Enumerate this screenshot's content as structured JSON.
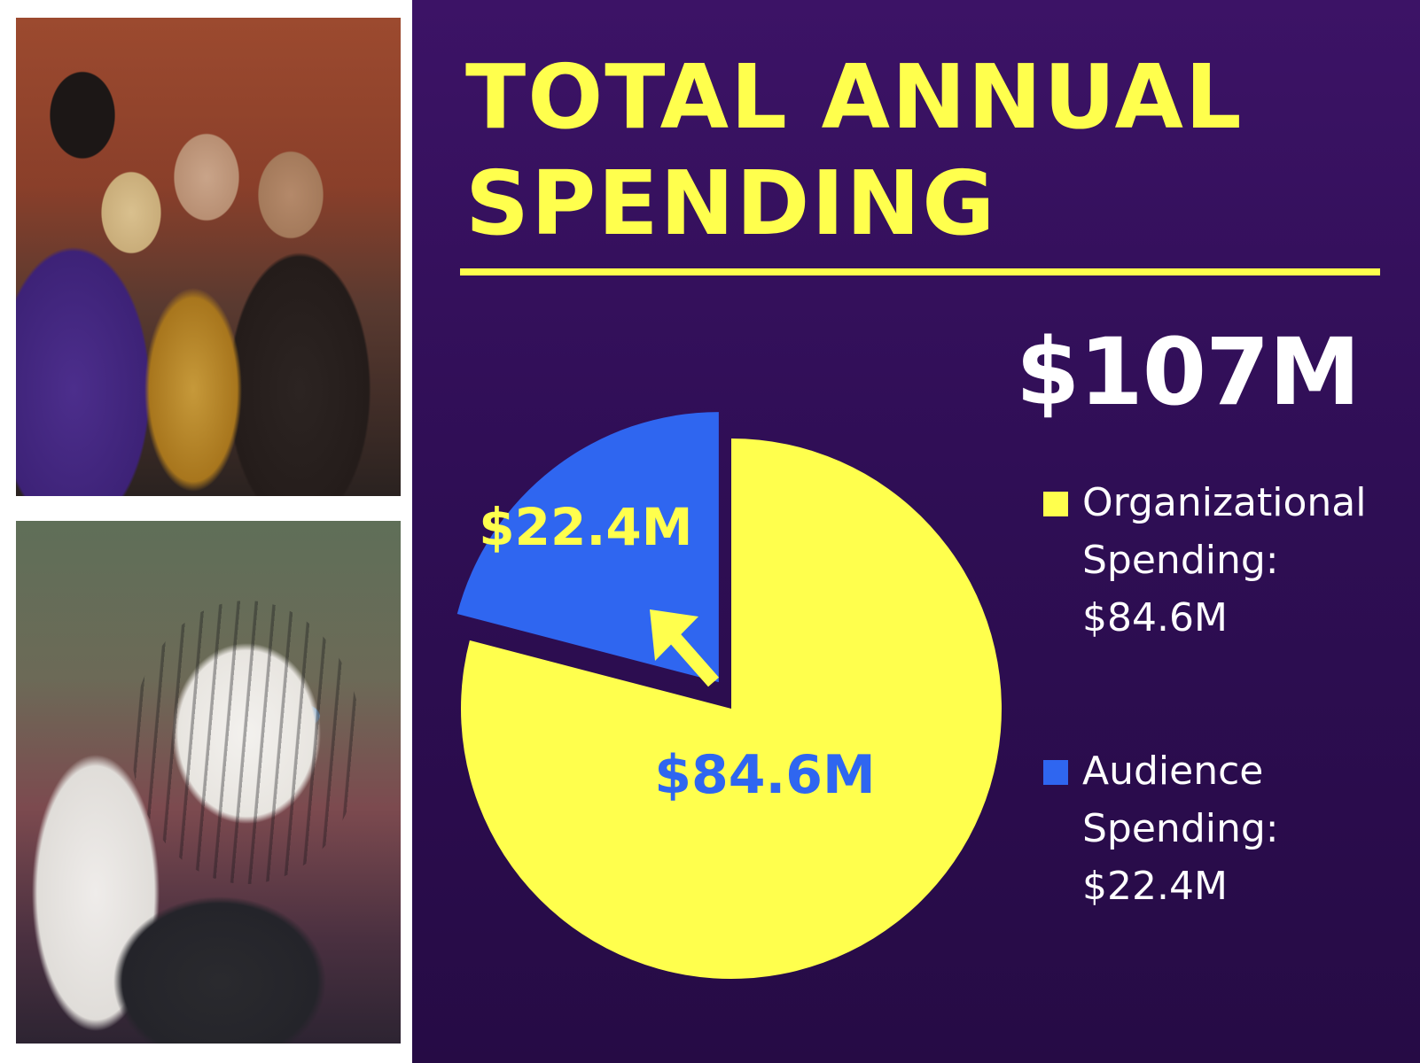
{
  "photos": {
    "top": "band-performance-photo",
    "bottom": "tiger-mask-photo"
  },
  "header": {
    "title": "TOTAL ANNUAL\nSPENDING"
  },
  "total": "$107M",
  "colors": {
    "panel_bg": "#2f0e55",
    "accent_yellow": "#ffff4d",
    "accent_blue": "#2f66f0",
    "text_white": "#ffffff"
  },
  "legend": [
    {
      "label": "Organizational\nSpending:\n$84.6M",
      "color": "#ffff4d"
    },
    {
      "label": "Audience\nSpending:\n$22.4M",
      "color": "#2f66f0"
    }
  ],
  "chart_data": {
    "type": "pie",
    "title": "TOTAL ANNUAL SPENDING",
    "total": 107,
    "unit": "$M",
    "slices": [
      {
        "name": "Organizational Spending",
        "value": 84.6,
        "label": "$84.6M",
        "color": "#ffff4d",
        "label_color": "#2f66f0",
        "exploded": false
      },
      {
        "name": "Audience Spending",
        "value": 22.4,
        "label": "$22.4M",
        "color": "#2f66f0",
        "label_color": "#ffff4d",
        "exploded": true
      }
    ],
    "legend_position": "right"
  }
}
